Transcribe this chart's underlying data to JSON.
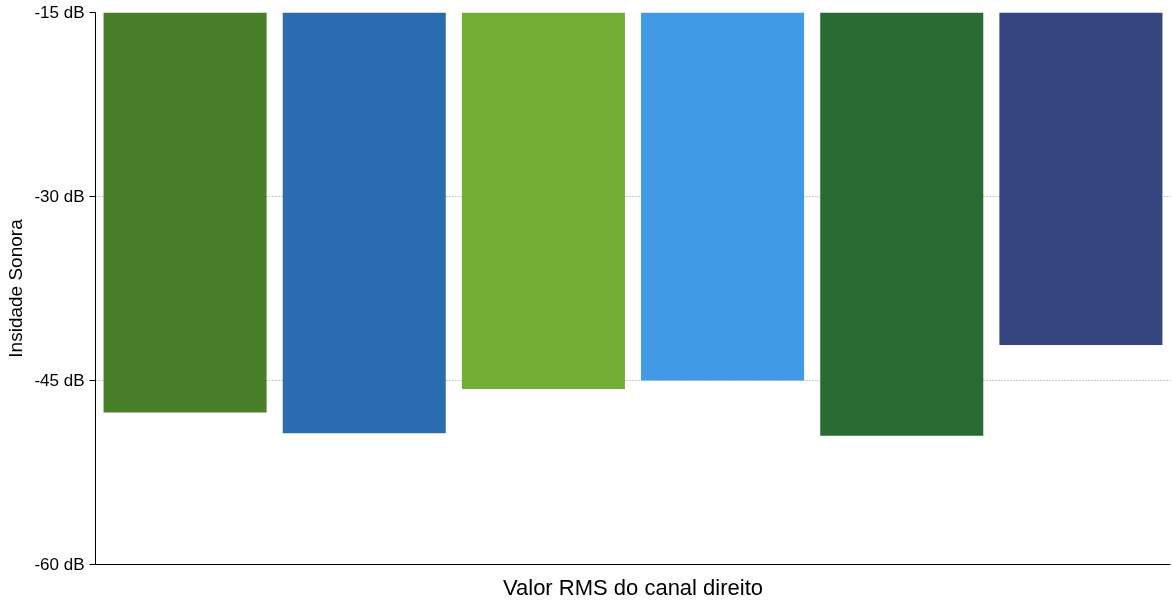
{
  "chart_data": {
    "type": "bar",
    "xlabel": "Valor RMS do canal direito",
    "ylabel": "Insidade Sonora",
    "categories": [
      null,
      null,
      null,
      null,
      null,
      null
    ],
    "base": [
      -15,
      -15,
      -15,
      -15,
      -15,
      -15
    ],
    "values": [
      -32.6,
      -34.3,
      -30.7,
      -30.0,
      -34.5,
      -27.1
    ],
    "colors": [
      "#4a7f2a",
      "#2b6cb0",
      "#72ae35",
      "#4299e6",
      "#2a6a33",
      "#344580"
    ],
    "ylim": [
      -60,
      -15
    ],
    "yticks": [
      {
        "value": -60,
        "label": "-60 dB"
      },
      {
        "value": -45,
        "label": "-45 dB"
      },
      {
        "value": -30,
        "label": "-30 dB"
      },
      {
        "value": -15,
        "label": "-15 dB"
      }
    ],
    "grid": "y"
  }
}
